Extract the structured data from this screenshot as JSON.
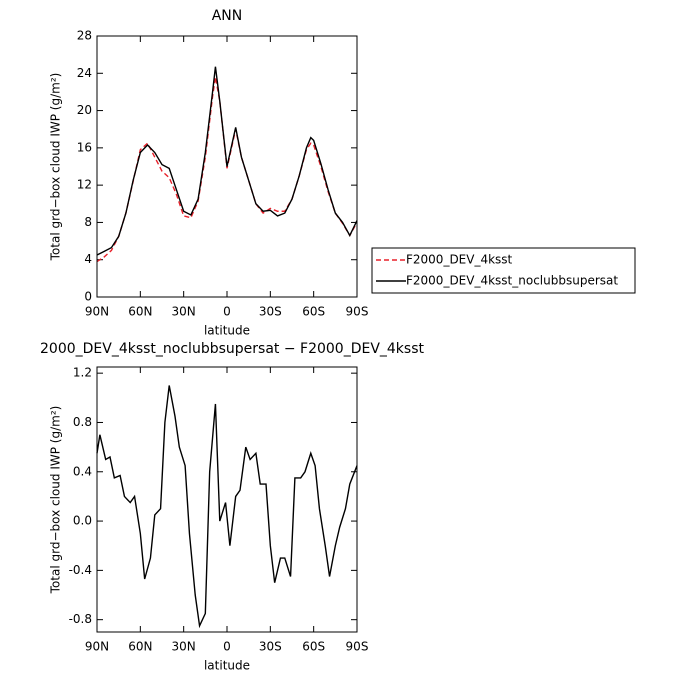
{
  "chart_data": [
    {
      "type": "line",
      "title": "ANN",
      "xlabel": "latitude",
      "ylabel": "Total grd−box cloud IWP (g/m²)",
      "x": [
        90,
        85,
        80,
        75,
        70,
        65,
        60,
        55,
        50,
        45,
        40,
        35,
        30,
        25,
        20,
        15,
        10,
        8,
        5,
        0,
        -6,
        -10,
        -15,
        -20,
        -25,
        -30,
        -35,
        -40,
        -45,
        -50,
        -55,
        -58,
        -60,
        -65,
        -70,
        -75,
        -80,
        -85,
        -90
      ],
      "series": [
        {
          "name": "F2000_DEV_4ksst",
          "color": "#e8202a",
          "dash": true,
          "values": [
            3.8,
            4.3,
            5.0,
            6.5,
            9.0,
            12.4,
            15.8,
            16.5,
            15.0,
            13.5,
            12.8,
            11.0,
            8.7,
            8.5,
            10.3,
            15.0,
            21.5,
            23.6,
            21.0,
            13.8,
            18.0,
            15.0,
            12.5,
            10.0,
            9.0,
            9.5,
            9.2,
            9.2,
            10.5,
            13.0,
            15.8,
            16.5,
            16.3,
            14.0,
            11.3,
            9.0,
            7.9,
            6.6,
            8.0
          ]
        },
        {
          "name": "F2000_DEV_4ksst_noclubbsupersat",
          "color": "#000000",
          "dash": false,
          "values": [
            4.5,
            4.9,
            5.3,
            6.5,
            9.0,
            12.5,
            15.5,
            16.3,
            15.5,
            14.2,
            13.8,
            11.5,
            9.2,
            8.8,
            10.5,
            15.5,
            22.0,
            24.7,
            21.0,
            14.0,
            18.2,
            15.0,
            12.5,
            10.0,
            9.2,
            9.3,
            8.7,
            9.0,
            10.5,
            13.0,
            16.0,
            17.1,
            16.8,
            14.3,
            11.5,
            9.0,
            8.0,
            6.6,
            8.2
          ]
        }
      ],
      "xlim": [
        90,
        -90
      ],
      "xticks": [
        {
          "value": 90,
          "label": "90N"
        },
        {
          "value": 60,
          "label": "60N"
        },
        {
          "value": 30,
          "label": "30N"
        },
        0,
        {
          "value": -30,
          "label": "30S"
        },
        {
          "value": -60,
          "label": "60S"
        },
        {
          "value": -90,
          "label": "90S"
        }
      ],
      "ylim": [
        0,
        28
      ],
      "yticks": [
        0,
        4,
        8,
        12,
        16,
        20,
        24,
        28
      ],
      "legend": "right"
    },
    {
      "type": "line",
      "title": "2000_DEV_4ksst_noclubbsupersat − F2000_DEV_4ksst",
      "xlabel": "latitude",
      "ylabel": "Total grd−box cloud IWP (g/m²)",
      "x": [
        90,
        88,
        84,
        81,
        78,
        74,
        71,
        67,
        64,
        60,
        57,
        53,
        50,
        46,
        43,
        40,
        36,
        33,
        29,
        26,
        22,
        19,
        15,
        12,
        8,
        5,
        1,
        -2,
        -6,
        -9,
        -13,
        -16,
        -20,
        -23,
        -27,
        -30,
        -33,
        -37,
        -40,
        -44,
        -47,
        -51,
        -54,
        -58,
        -61,
        -64,
        -68,
        -71,
        -75,
        -78,
        -82,
        -85,
        -90
      ],
      "series": [
        {
          "name": "F2000_DEV_4ksst_noclubbsupersat",
          "color": "#000000",
          "dash": false,
          "values": [
            0.55,
            0.7,
            0.5,
            0.52,
            0.35,
            0.37,
            0.2,
            0.15,
            0.2,
            -0.1,
            -0.47,
            -0.3,
            0.05,
            0.1,
            0.8,
            1.1,
            0.85,
            0.6,
            0.45,
            -0.1,
            -0.6,
            -0.85,
            -0.75,
            0.4,
            0.95,
            0.0,
            0.15,
            -0.2,
            0.2,
            0.25,
            0.6,
            0.5,
            0.55,
            0.3,
            0.3,
            -0.2,
            -0.5,
            -0.3,
            -0.3,
            -0.45,
            0.35,
            0.35,
            0.4,
            0.55,
            0.45,
            0.1,
            -0.2,
            -0.45,
            -0.2,
            -0.05,
            0.1,
            0.3,
            0.45
          ]
        }
      ],
      "xlim": [
        90,
        -90
      ],
      "xticks": [
        {
          "value": 90,
          "label": "90N"
        },
        {
          "value": 60,
          "label": "60N"
        },
        {
          "value": 30,
          "label": "30N"
        },
        0,
        {
          "value": -30,
          "label": "30S"
        },
        {
          "value": -60,
          "label": "60S"
        },
        {
          "value": -90,
          "label": "90S"
        }
      ],
      "ylim": [
        -0.9,
        1.25
      ],
      "yticks": [
        -0.8,
        -0.4,
        {
          "value": 0,
          "label": "0.0"
        },
        0.4,
        0.8,
        1.2
      ]
    }
  ]
}
